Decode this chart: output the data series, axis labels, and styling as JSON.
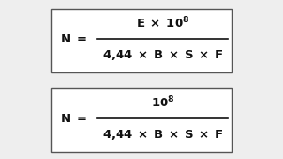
{
  "background_color": "#eeeeee",
  "box_color": "#ffffff",
  "box_edge_color": "#555555",
  "text_color": "#111111",
  "font_size": 9.5,
  "font_weight": "bold"
}
